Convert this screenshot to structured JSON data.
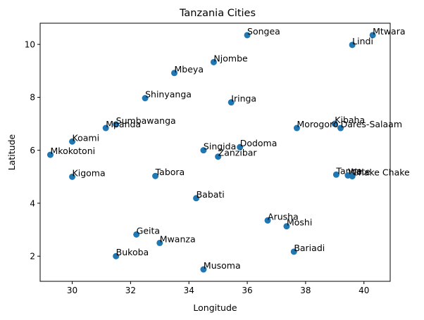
{
  "chart_data": {
    "type": "scatter",
    "title": "Tanzania Cities",
    "xlabel": "Longitude",
    "ylabel": "Latitude",
    "xlim": [
      28.9,
      40.9
    ],
    "ylim": [
      1.05,
      10.8
    ],
    "xticks": [
      30,
      32,
      34,
      36,
      38,
      40
    ],
    "yticks": [
      2,
      4,
      6,
      8,
      10
    ],
    "grid": false,
    "marker_color": "#1f77b4",
    "points": [
      {
        "label": "Songea",
        "x": 36.0,
        "y": 10.35
      },
      {
        "label": "Mtwara",
        "x": 40.3,
        "y": 10.35
      },
      {
        "label": "Lindi",
        "x": 39.6,
        "y": 9.98
      },
      {
        "label": "Njombe",
        "x": 34.85,
        "y": 9.33
      },
      {
        "label": "Mbeya",
        "x": 33.5,
        "y": 8.92
      },
      {
        "label": "Shinyanga",
        "x": 32.5,
        "y": 7.97
      },
      {
        "label": "Iringa",
        "x": 35.45,
        "y": 7.81
      },
      {
        "label": "Kibaha",
        "x": 39.0,
        "y": 7.0
      },
      {
        "label": "Sumbawanga",
        "x": 31.5,
        "y": 6.98
      },
      {
        "label": "Mpanda",
        "x": 31.15,
        "y": 6.84
      },
      {
        "label": "Morogoro",
        "x": 37.7,
        "y": 6.84
      },
      {
        "label": "Dares-Salaam",
        "x": 39.2,
        "y": 6.84
      },
      {
        "label": "Koami",
        "x": 30.0,
        "y": 6.33
      },
      {
        "label": "Dodoma",
        "x": 35.75,
        "y": 6.12
      },
      {
        "label": "Singida",
        "x": 34.5,
        "y": 6.0
      },
      {
        "label": "Mkokotoni",
        "x": 29.25,
        "y": 5.83
      },
      {
        "label": "Zanzibar",
        "x": 35.0,
        "y": 5.76
      },
      {
        "label": "Tanga",
        "x": 39.05,
        "y": 5.08
      },
      {
        "label": "Wete",
        "x": 39.45,
        "y": 5.05
      },
      {
        "label": "Chake Chake",
        "x": 39.6,
        "y": 5.02
      },
      {
        "label": "Tabora",
        "x": 32.85,
        "y": 5.03
      },
      {
        "label": "Kigoma",
        "x": 30.0,
        "y": 5.0
      },
      {
        "label": "Babati",
        "x": 34.25,
        "y": 4.19
      },
      {
        "label": "Arusha",
        "x": 36.7,
        "y": 3.35
      },
      {
        "label": "Moshi",
        "x": 37.35,
        "y": 3.13
      },
      {
        "label": "Geita",
        "x": 32.2,
        "y": 2.82
      },
      {
        "label": "Mwanza",
        "x": 33.0,
        "y": 2.5
      },
      {
        "label": "Bariadi",
        "x": 37.6,
        "y": 2.17
      },
      {
        "label": "Bukoba",
        "x": 31.5,
        "y": 2.0
      },
      {
        "label": "Musoma",
        "x": 34.5,
        "y": 1.5
      }
    ]
  }
}
